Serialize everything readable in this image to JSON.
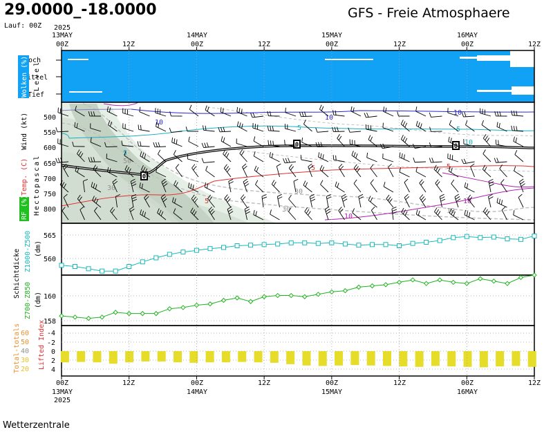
{
  "header": {
    "coordinates": "29.0000_-18.0000",
    "title": "GFS - Freie Atmosphaere",
    "run": "Lauf: 00Z"
  },
  "footer": {
    "source": "Wetterzentrale"
  },
  "time_axis": {
    "year": "2025",
    "day_labels": [
      "13MAY",
      "14MAY",
      "15MAY",
      "16MAY"
    ],
    "hour_labels": [
      "00Z",
      "12Z",
      "00Z",
      "12Z",
      "00Z",
      "12Z",
      "00Z",
      "12Z"
    ],
    "first_day_label": "13MAY",
    "last_hour_label": "12Z"
  },
  "panels": {
    "clouds": {
      "label": "Wolken (%)",
      "level_label": "Level",
      "levels": [
        "Hoch",
        "Mittel",
        "Tief"
      ],
      "fill_color": "#11a2f5"
    },
    "pressure": {
      "label_wind": "Wind (kt)",
      "label_temp": "Temp. (C)",
      "label_rh": "RF (%)",
      "label_hpa": "Hectopascal",
      "ticks": [
        "500",
        "550",
        "600",
        "650",
        "700",
        "750",
        "800"
      ],
      "freezing_labels": [
        "0",
        "0",
        "0"
      ],
      "isotherm_labels": [
        "10",
        "10",
        "10",
        "5",
        "5",
        "5",
        "5",
        "5",
        "10",
        "10",
        "10",
        "10"
      ],
      "rh_labels": [
        "30",
        "30",
        "50",
        "30"
      ]
    },
    "thickness_500": {
      "label_main": "Schichtdicke",
      "label_series": "Z1000-Z500",
      "unit": "(dm)",
      "ticks": [
        "565",
        "560"
      ],
      "color": "#18b8b8"
    },
    "thickness_850": {
      "label_series": "Z700-Z850",
      "unit": "(dm)",
      "ticks": [
        "160",
        "158"
      ],
      "color": "#1fb31f"
    },
    "indices": {
      "total_totals_label": "Total-totals",
      "lifted_index_label": "Lifted Index",
      "tt_ticks": [
        "60",
        "50",
        "40",
        "30",
        "20"
      ],
      "li_ticks": [
        "-4",
        "-2",
        "0",
        "2",
        "4"
      ],
      "bar_color": "#e6dc2a"
    }
  },
  "chart_data": [
    {
      "type": "line",
      "name": "Z1000-Z500",
      "x_hours": [
        0,
        6,
        12,
        18,
        24,
        30,
        36,
        42,
        48,
        54,
        60,
        66,
        72,
        78,
        84,
        90,
        96,
        102,
        108,
        114,
        120,
        126,
        132,
        138,
        144,
        150,
        156,
        162,
        168,
        174,
        180,
        186,
        192,
        198,
        204,
        210
      ],
      "values": [
        559.2,
        559.0,
        558.6,
        558.2,
        558.2,
        559.0,
        559.8,
        560.5,
        561.1,
        561.5,
        561.8,
        562.1,
        562.3,
        562.6,
        562.7,
        562.8,
        562.9,
        563.1,
        563.1,
        563.0,
        563.1,
        562.9,
        562.7,
        562.8,
        562.8,
        562.6,
        563.0,
        563.2,
        563.5,
        564.0,
        564.2,
        564.0,
        564.1,
        563.8,
        563.7,
        564.3
      ],
      "ylim": [
        557.5,
        566.5
      ]
    },
    {
      "type": "line",
      "name": "Z700-Z850",
      "x_hours": [
        0,
        6,
        12,
        18,
        24,
        30,
        36,
        42,
        48,
        54,
        60,
        66,
        72,
        78,
        84,
        90,
        96,
        102,
        108,
        114,
        120,
        126,
        132,
        138,
        144,
        150,
        156,
        162,
        168,
        174,
        180,
        186,
        192,
        198,
        204,
        210
      ],
      "values": [
        158.4,
        158.3,
        158.2,
        158.3,
        158.7,
        158.6,
        158.6,
        158.6,
        159.0,
        159.1,
        159.3,
        159.4,
        159.7,
        159.9,
        159.6,
        160.0,
        160.1,
        160.1,
        160.0,
        160.2,
        160.4,
        160.5,
        160.8,
        160.9,
        161.0,
        161.2,
        161.4,
        161.1,
        161.4,
        161.2,
        161.1,
        161.5,
        161.3,
        161.1,
        161.6,
        161.8
      ],
      "ylim": [
        157.6,
        161.8
      ]
    },
    {
      "type": "bar",
      "name": "Lifted Index",
      "x_hours": [
        0,
        6,
        12,
        18,
        24,
        30,
        36,
        42,
        48,
        54,
        60,
        66,
        72,
        78,
        84,
        90,
        96,
        102,
        108,
        114,
        120,
        126,
        132,
        138,
        144,
        150,
        156,
        162,
        168,
        174
      ],
      "values": [
        2.5,
        2.4,
        2.5,
        2.8,
        2.5,
        2.3,
        2.3,
        2.5,
        2.6,
        2.5,
        2.5,
        2.4,
        2.5,
        2.6,
        2.9,
        3.2,
        3.3,
        3.2,
        3.1,
        3.2,
        3.3,
        3.4,
        3.5,
        3.3,
        3.4,
        3.5,
        3.6,
        3.4,
        3.3,
        3.5
      ],
      "ylim": [
        -5,
        5
      ]
    }
  ]
}
